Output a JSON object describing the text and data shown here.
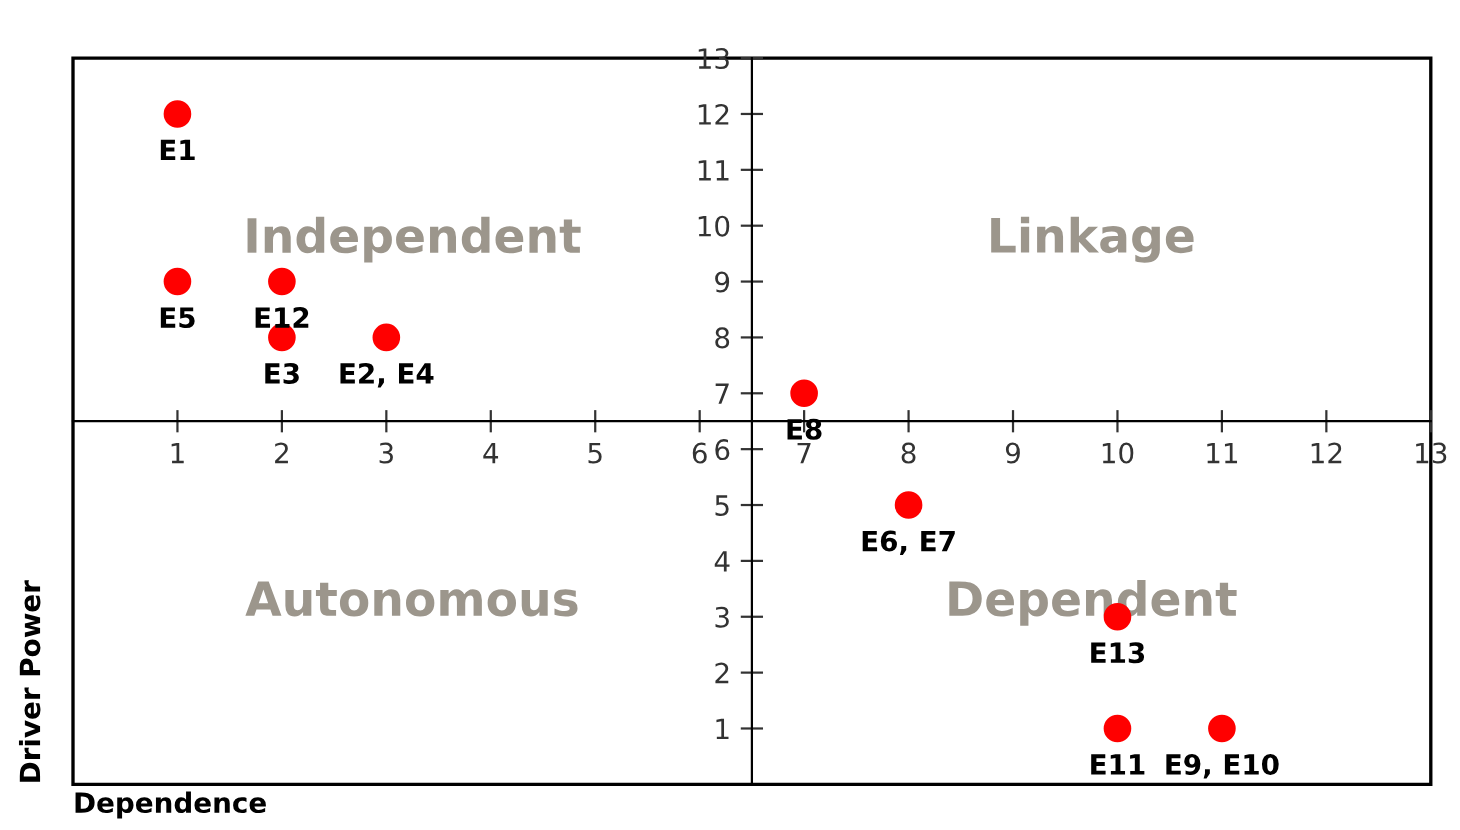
{
  "chart_data": {
    "type": "scatter",
    "xlabel": "Dependence",
    "ylabel": "Driver Power",
    "x": [
      1,
      1,
      2,
      2,
      3,
      7,
      8,
      10,
      10,
      11
    ],
    "series": [
      {
        "color": "#ff0000",
        "values": [
          12,
          9,
          9,
          8,
          8,
          7,
          5,
          3,
          1,
          1
        ]
      }
    ],
    "marker": "circle",
    "xlim": [
      0,
      13
    ],
    "ylim": [
      0,
      13
    ],
    "xticks": [
      1,
      2,
      3,
      4,
      5,
      6,
      7,
      8,
      9,
      10,
      11,
      12,
      13
    ],
    "yticks": [
      1,
      2,
      3,
      4,
      5,
      6,
      7,
      8,
      9,
      10,
      11,
      12,
      13
    ],
    "grid": false,
    "legend": false,
    "annotations": [
      {
        "text": "E1",
        "x": 1,
        "y": 12
      },
      {
        "text": "E5",
        "x": 1,
        "y": 9
      },
      {
        "text": "E12",
        "x": 2,
        "y": 9
      },
      {
        "text": "E3",
        "x": 2,
        "y": 8
      },
      {
        "text": "E2, E4",
        "x": 3,
        "y": 8
      },
      {
        "text": "E8",
        "x": 7,
        "y": 7
      },
      {
        "text": "E6, E7",
        "x": 8,
        "y": 5
      },
      {
        "text": "E13",
        "x": 10,
        "y": 3
      },
      {
        "text": "E11",
        "x": 10,
        "y": 1
      },
      {
        "text": "E9, E10",
        "x": 11,
        "y": 1
      },
      "Independent",
      "Linkage",
      "Autonomous",
      "Dependent"
    ]
  }
}
